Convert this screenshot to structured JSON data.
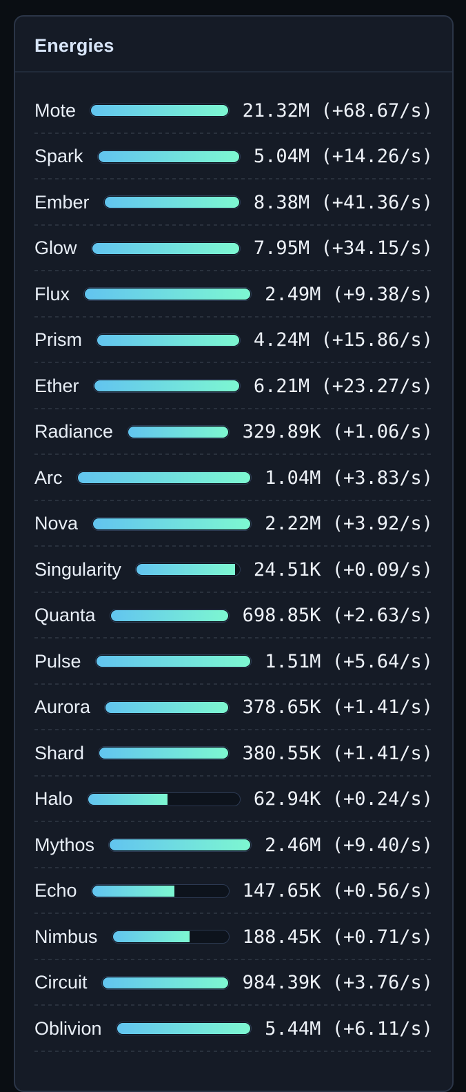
{
  "panel": {
    "title": "Energies"
  },
  "colors": {
    "page_bg": "#0a0e13",
    "card_bg": "#151b26",
    "card_border": "#2b3547",
    "bar_start": "#62c4ef",
    "bar_end": "#7df7d1",
    "title_color": "#d8e5f8",
    "label_color": "#e8eef6",
    "value_color": "#edf1f7"
  },
  "chart_data": {
    "type": "bar",
    "title": "Energies",
    "categories": [
      "Mote",
      "Spark",
      "Ember",
      "Glow",
      "Flux",
      "Prism",
      "Ether",
      "Radiance",
      "Arc",
      "Nova",
      "Singularity",
      "Quanta",
      "Pulse",
      "Aurora",
      "Shard",
      "Halo",
      "Mythos",
      "Echo",
      "Nimbus",
      "Circuit",
      "Oblivion"
    ],
    "values_label": [
      "21.32M",
      "5.04M",
      "8.38M",
      "7.95M",
      "2.49M",
      "4.24M",
      "6.21M",
      "329.89K",
      "1.04M",
      "2.22M",
      "24.51K",
      "698.85K",
      "1.51M",
      "378.65K",
      "380.55K",
      "62.94K",
      "2.46M",
      "147.65K",
      "188.45K",
      "984.39K",
      "5.44M"
    ],
    "rates_per_s": [
      68.67,
      14.26,
      41.36,
      34.15,
      9.38,
      15.86,
      23.27,
      1.06,
      3.83,
      3.92,
      0.09,
      2.63,
      5.64,
      1.41,
      1.41,
      0.24,
      9.4,
      0.56,
      0.71,
      3.76,
      6.11
    ],
    "fill_percent": [
      100,
      100,
      100,
      100,
      100,
      100,
      100,
      100,
      100,
      100,
      96,
      100,
      100,
      100,
      100,
      53,
      100,
      61,
      67,
      100,
      100
    ]
  },
  "energies": [
    {
      "name": "Mote",
      "amount": "21.32M",
      "rate": "(+68.67/s)",
      "fill_pct": 100
    },
    {
      "name": "Spark",
      "amount": "5.04M",
      "rate": "(+14.26/s)",
      "fill_pct": 100
    },
    {
      "name": "Ember",
      "amount": "8.38M",
      "rate": "(+41.36/s)",
      "fill_pct": 100
    },
    {
      "name": "Glow",
      "amount": "7.95M",
      "rate": "(+34.15/s)",
      "fill_pct": 100
    },
    {
      "name": "Flux",
      "amount": "2.49M",
      "rate": "(+9.38/s)",
      "fill_pct": 100
    },
    {
      "name": "Prism",
      "amount": "4.24M",
      "rate": "(+15.86/s)",
      "fill_pct": 100
    },
    {
      "name": "Ether",
      "amount": "6.21M",
      "rate": "(+23.27/s)",
      "fill_pct": 100
    },
    {
      "name": "Radiance",
      "amount": "329.89K",
      "rate": "(+1.06/s)",
      "fill_pct": 100
    },
    {
      "name": "Arc",
      "amount": "1.04M",
      "rate": "(+3.83/s)",
      "fill_pct": 100
    },
    {
      "name": "Nova",
      "amount": "2.22M",
      "rate": "(+3.92/s)",
      "fill_pct": 100
    },
    {
      "name": "Singularity",
      "amount": "24.51K",
      "rate": "(+0.09/s)",
      "fill_pct": 96
    },
    {
      "name": "Quanta",
      "amount": "698.85K",
      "rate": "(+2.63/s)",
      "fill_pct": 100
    },
    {
      "name": "Pulse",
      "amount": "1.51M",
      "rate": "(+5.64/s)",
      "fill_pct": 100
    },
    {
      "name": "Aurora",
      "amount": "378.65K",
      "rate": "(+1.41/s)",
      "fill_pct": 100
    },
    {
      "name": "Shard",
      "amount": "380.55K",
      "rate": "(+1.41/s)",
      "fill_pct": 100
    },
    {
      "name": "Halo",
      "amount": "62.94K",
      "rate": "(+0.24/s)",
      "fill_pct": 53
    },
    {
      "name": "Mythos",
      "amount": "2.46M",
      "rate": "(+9.40/s)",
      "fill_pct": 100
    },
    {
      "name": "Echo",
      "amount": "147.65K",
      "rate": "(+0.56/s)",
      "fill_pct": 61
    },
    {
      "name": "Nimbus",
      "amount": "188.45K",
      "rate": "(+0.71/s)",
      "fill_pct": 67
    },
    {
      "name": "Circuit",
      "amount": "984.39K",
      "rate": "(+3.76/s)",
      "fill_pct": 100
    },
    {
      "name": "Oblivion",
      "amount": "5.44M",
      "rate": "(+6.11/s)",
      "fill_pct": 100
    }
  ]
}
